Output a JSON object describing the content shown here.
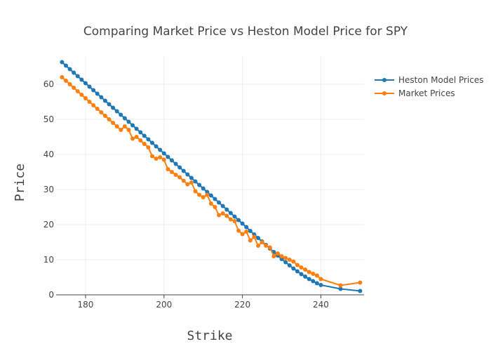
{
  "chart_data": {
    "type": "line",
    "title": "Comparing Market Price vs Heston Model Price for SPY",
    "xlabel": "Strike",
    "ylabel": "Price",
    "xlim": [
      172.5,
      251
    ],
    "ylim": [
      0,
      68
    ],
    "xticks": [
      180,
      200,
      220,
      240
    ],
    "yticks": [
      0,
      10,
      20,
      30,
      40,
      50,
      60
    ],
    "grid": true,
    "legend_position": "top-right",
    "series": [
      {
        "name": "Heston Model Prices",
        "color": "#1f77b4",
        "x": [
          174,
          175,
          176,
          177,
          178,
          179,
          180,
          181,
          182,
          183,
          184,
          185,
          186,
          187,
          188,
          189,
          190,
          191,
          192,
          193,
          194,
          195,
          196,
          197,
          198,
          199,
          200,
          201,
          202,
          203,
          204,
          205,
          206,
          207,
          208,
          209,
          210,
          211,
          212,
          213,
          214,
          215,
          216,
          217,
          218,
          219,
          220,
          221,
          222,
          223,
          224,
          225,
          226,
          227,
          228,
          229,
          230,
          231,
          232,
          233,
          234,
          235,
          236,
          237,
          238,
          239,
          240,
          245,
          250
        ],
        "y": [
          66.3,
          65.3,
          64.3,
          63.3,
          62.3,
          61.3,
          60.3,
          59.3,
          58.3,
          57.3,
          56.3,
          55.3,
          54.3,
          53.3,
          52.3,
          51.3,
          50.3,
          49.3,
          48.3,
          47.3,
          46.3,
          45.3,
          44.3,
          43.3,
          42.3,
          41.3,
          40.3,
          39.3,
          38.3,
          37.3,
          36.3,
          35.3,
          34.3,
          33.3,
          32.3,
          31.3,
          30.3,
          29.3,
          28.3,
          27.3,
          26.3,
          25.3,
          24.3,
          23.3,
          22.3,
          21.3,
          20.3,
          19.3,
          18.2,
          17.2,
          16.2,
          15.2,
          14.2,
          13.2,
          12.2,
          11.2,
          10.2,
          9.3,
          8.4,
          7.5,
          6.7,
          5.9,
          5.2,
          4.5,
          3.9,
          3.3,
          2.8,
          1.7,
          1.1
        ]
      },
      {
        "name": "Market Prices",
        "color": "#ff7f0e",
        "x": [
          174,
          175,
          176,
          177,
          178,
          179,
          180,
          181,
          182,
          183,
          184,
          185,
          186,
          187,
          188,
          189,
          190,
          191,
          192,
          193,
          194,
          195,
          196,
          197,
          198,
          199,
          200,
          201,
          202,
          203,
          204,
          205,
          206,
          207,
          208,
          209,
          210,
          211,
          212,
          213,
          214,
          215,
          216,
          217,
          218,
          219,
          220,
          221,
          222,
          223,
          224,
          225,
          226,
          227,
          228,
          229,
          230,
          231,
          232,
          233,
          234,
          235,
          236,
          237,
          238,
          239,
          240,
          245,
          250
        ],
        "y": [
          62.0,
          61.0,
          60.0,
          59.0,
          58.0,
          57.0,
          56.0,
          55.0,
          54.0,
          53.0,
          52.0,
          51.0,
          50.0,
          49.0,
          48.0,
          47.0,
          48.0,
          47.0,
          44.5,
          45.0,
          44.0,
          43.0,
          42.0,
          39.5,
          38.8,
          39.2,
          38.5,
          35.8,
          35.0,
          34.2,
          33.5,
          32.5,
          31.5,
          32.0,
          29.5,
          28.5,
          27.8,
          28.5,
          26.0,
          25.0,
          22.7,
          23.2,
          22.5,
          21.5,
          21.0,
          18.3,
          17.3,
          18.0,
          15.5,
          16.5,
          14.0,
          15.0,
          14.0,
          13.5,
          11.0,
          11.8,
          11.0,
          10.5,
          10.0,
          9.5,
          8.5,
          7.8,
          7.2,
          6.5,
          6.0,
          5.5,
          4.5,
          2.7,
          3.5
        ]
      }
    ]
  }
}
